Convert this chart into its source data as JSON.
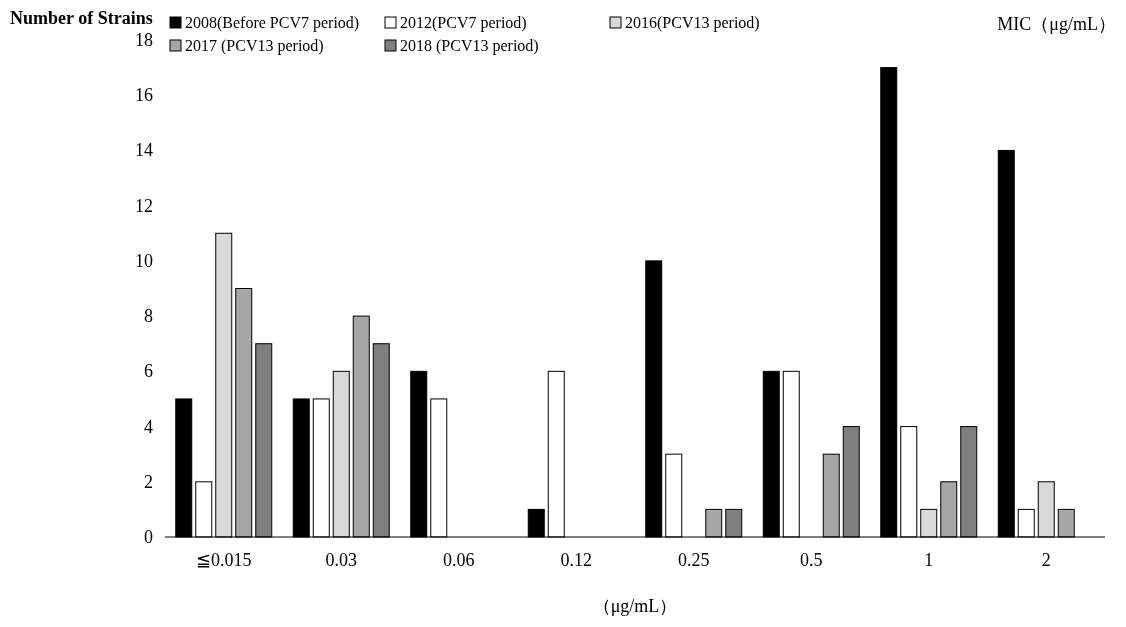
{
  "chart_data": {
    "type": "bar",
    "ylabel": "Number of Strains",
    "xlabel": "（μg/mL）",
    "annotations": [
      "MIC（μg/mL）"
    ],
    "categories": [
      "≦0.015",
      "0.03",
      "0.06",
      "0.12",
      "0.25",
      "0.5",
      "1",
      "2"
    ],
    "series": [
      {
        "name": "2008(Before PCV7 period)",
        "color": "#000000",
        "values": [
          5,
          5,
          6,
          1,
          10,
          6,
          17,
          14
        ]
      },
      {
        "name": "2012(PCV7 period)",
        "color": "#ffffff",
        "values": [
          2,
          5,
          5,
          6,
          3,
          6,
          4,
          1
        ]
      },
      {
        "name": "2016(PCV13 period)",
        "color": "#d9d9d9",
        "values": [
          11,
          6,
          0,
          0,
          0,
          0,
          1,
          2
        ]
      },
      {
        "name": "2017 (PCV13 period)",
        "color": "#a6a6a6",
        "values": [
          9,
          8,
          0,
          0,
          1,
          3,
          2,
          1
        ]
      },
      {
        "name": "2018 (PCV13 period)",
        "color": "#7f7f7f",
        "values": [
          7,
          7,
          0,
          0,
          1,
          4,
          4,
          0
        ]
      }
    ],
    "ylim": [
      0,
      18
    ],
    "yticks": [
      0,
      2,
      4,
      6,
      8,
      10,
      12,
      14,
      16,
      18
    ],
    "legend": "top",
    "grid": false
  }
}
